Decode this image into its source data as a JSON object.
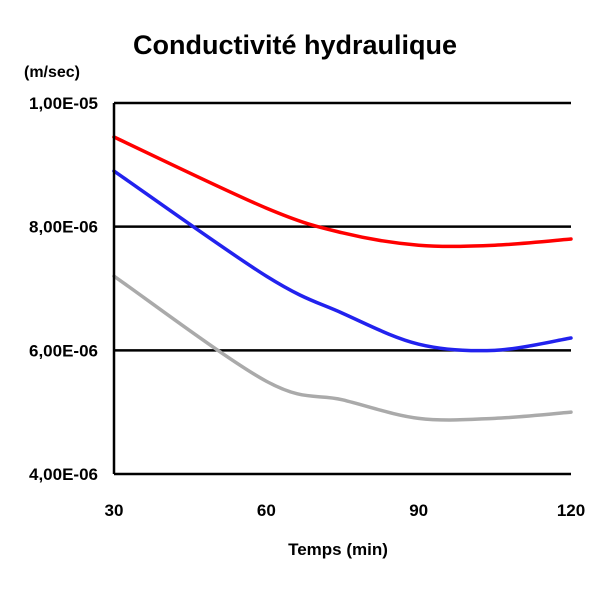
{
  "chart_data": {
    "type": "line",
    "title": "Conductivité hydraulique",
    "xlabel": "Temps (min)",
    "ylabel": "(m/sec)",
    "x": [
      30,
      60,
      75,
      90,
      105,
      120
    ],
    "x_ticks": [
      "30",
      "60",
      "90",
      "120"
    ],
    "x_tick_values": [
      30,
      60,
      90,
      120
    ],
    "xlim": [
      30,
      120
    ],
    "y_ticks": [
      "1,00E-05",
      "8,00E-06",
      "6,00E-06",
      "4,00E-06"
    ],
    "y_tick_values": [
      1e-05,
      8e-06,
      6e-06,
      4e-06
    ],
    "ylim": [
      4e-06,
      1e-05
    ],
    "grid": "horizontal",
    "legend": "none",
    "series": [
      {
        "color": "#ff0000",
        "values": [
          9.45e-06,
          8.3e-06,
          7.9e-06,
          7.7e-06,
          7.7e-06,
          7.8e-06
        ]
      },
      {
        "color": "#2222ee",
        "values": [
          8.9e-06,
          7.2e-06,
          6.6e-06,
          6.1e-06,
          6e-06,
          6.2e-06
        ]
      },
      {
        "color": "#aaaaaa",
        "values": [
          7.2e-06,
          5.5e-06,
          5.2e-06,
          4.9e-06,
          4.9e-06,
          5e-06
        ]
      }
    ]
  }
}
